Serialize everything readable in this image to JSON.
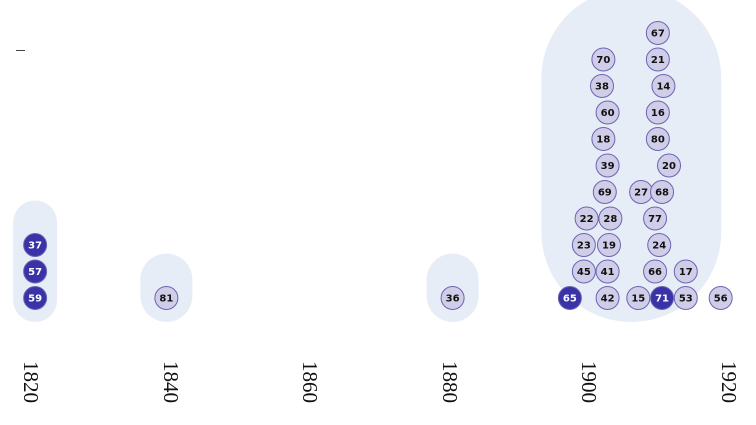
{
  "chart_data": {
    "type": "scatter",
    "title": "",
    "xlabel": "",
    "ylabel": "",
    "x_ticks": [
      1820,
      1840,
      1860,
      1880,
      1900,
      1920
    ],
    "xlim": [
      1817,
      1923
    ],
    "points": [
      {
        "label": "59",
        "x": 1820.6,
        "stack": 0,
        "highlight": true
      },
      {
        "label": "57",
        "x": 1820.6,
        "stack": 1,
        "highlight": true
      },
      {
        "label": "37",
        "x": 1820.6,
        "stack": 2,
        "highlight": true
      },
      {
        "label": "81",
        "x": 1839.4,
        "stack": 0,
        "highlight": false
      },
      {
        "label": "36",
        "x": 1880.4,
        "stack": 0,
        "highlight": false
      },
      {
        "label": "65",
        "x": 1897.2,
        "stack": 0,
        "highlight": true
      },
      {
        "label": "45",
        "x": 1899.2,
        "stack": 1,
        "highlight": false
      },
      {
        "label": "23",
        "x": 1899.2,
        "stack": 2,
        "highlight": false
      },
      {
        "label": "22",
        "x": 1899.6,
        "stack": 3,
        "highlight": false
      },
      {
        "label": "42",
        "x": 1902.6,
        "stack": 0,
        "highlight": false
      },
      {
        "label": "41",
        "x": 1902.6,
        "stack": 1,
        "highlight": false
      },
      {
        "label": "19",
        "x": 1902.8,
        "stack": 2,
        "highlight": false
      },
      {
        "label": "28",
        "x": 1903.0,
        "stack": 3,
        "highlight": false
      },
      {
        "label": "69",
        "x": 1902.2,
        "stack": 4,
        "highlight": false
      },
      {
        "label": "39",
        "x": 1902.6,
        "stack": 5,
        "highlight": false
      },
      {
        "label": "18",
        "x": 1902.0,
        "stack": 6,
        "highlight": false
      },
      {
        "label": "60",
        "x": 1902.6,
        "stack": 7,
        "highlight": false
      },
      {
        "label": "38",
        "x": 1901.8,
        "stack": 8,
        "highlight": false
      },
      {
        "label": "70",
        "x": 1902.0,
        "stack": 9,
        "highlight": false
      },
      {
        "label": "15",
        "x": 1907.0,
        "stack": 0,
        "highlight": false
      },
      {
        "label": "71",
        "x": 1910.4,
        "stack": 0,
        "highlight": true
      },
      {
        "label": "66",
        "x": 1909.4,
        "stack": 1,
        "highlight": false
      },
      {
        "label": "24",
        "x": 1910.0,
        "stack": 2,
        "highlight": false
      },
      {
        "label": "77",
        "x": 1909.4,
        "stack": 3,
        "highlight": false
      },
      {
        "label": "27",
        "x": 1907.4,
        "stack": 4,
        "highlight": false
      },
      {
        "label": "68",
        "x": 1910.4,
        "stack": 4,
        "highlight": false
      },
      {
        "label": "20",
        "x": 1911.4,
        "stack": 5,
        "highlight": false
      },
      {
        "label": "80",
        "x": 1909.8,
        "stack": 6,
        "highlight": false
      },
      {
        "label": "16",
        "x": 1909.8,
        "stack": 7,
        "highlight": false
      },
      {
        "label": "14",
        "x": 1910.6,
        "stack": 8,
        "highlight": false
      },
      {
        "label": "21",
        "x": 1909.8,
        "stack": 9,
        "highlight": false
      },
      {
        "label": "67",
        "x": 1909.8,
        "stack": 10,
        "highlight": false
      },
      {
        "label": "53",
        "x": 1913.8,
        "stack": 0,
        "highlight": false
      },
      {
        "label": "17",
        "x": 1913.8,
        "stack": 1,
        "highlight": false
      },
      {
        "label": "56",
        "x": 1918.8,
        "stack": 0,
        "highlight": false
      }
    ],
    "colors": {
      "point_fill": "#cfcde8",
      "point_stroke": "#6b64b2",
      "highlight_fill": "#3a33a8",
      "highlight_text": "#ffffff",
      "text": "#111111",
      "density": "#c9d6ee"
    }
  }
}
